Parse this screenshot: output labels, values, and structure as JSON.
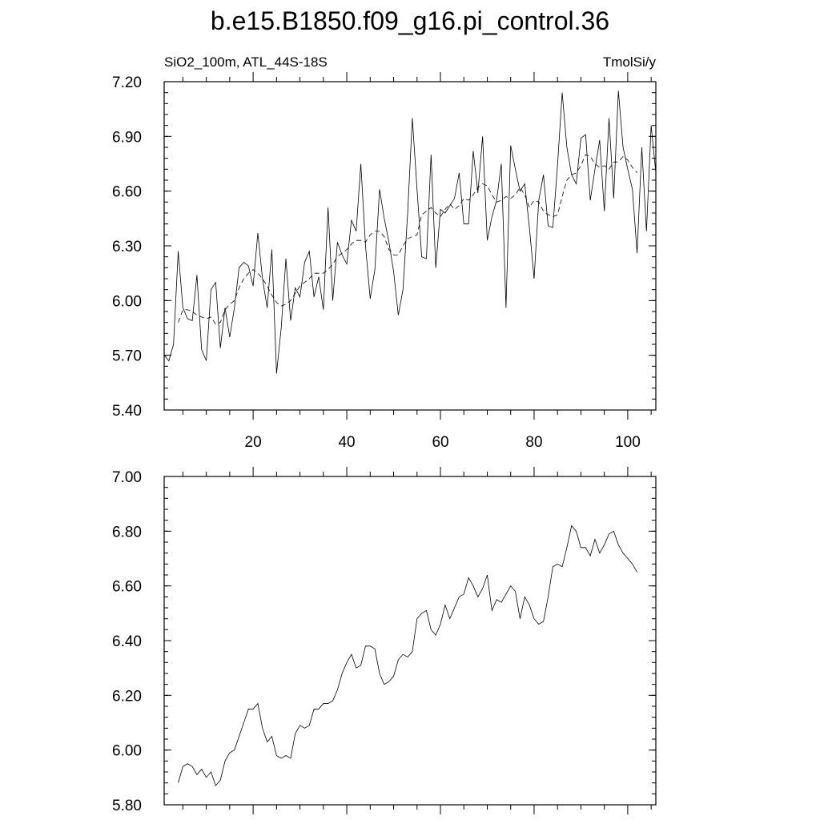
{
  "title": "b.e15.B1850.f09_g16.pi_control.36",
  "chart_data": [
    {
      "type": "line",
      "subtitle_left": "SiO2_100m, ATL_44S-18S",
      "subtitle_right": "TmolSi/y",
      "xlim": [
        1,
        106
      ],
      "ylim": [
        5.4,
        7.2
      ],
      "x_ticks": [
        20,
        40,
        60,
        80,
        100
      ],
      "x_tick_labels": [
        "20",
        "40",
        "60",
        "80",
        "100"
      ],
      "y_ticks": [
        5.4,
        5.7,
        6.0,
        6.3,
        6.6,
        6.9,
        7.2
      ],
      "y_tick_labels": [
        "5.40",
        "5.70",
        "6.00",
        "6.30",
        "6.60",
        "6.90",
        "7.20"
      ],
      "series": [
        {
          "style": "solid",
          "x": [
            1,
            2,
            3,
            4,
            5,
            6,
            7,
            8,
            9,
            10,
            11,
            12,
            13,
            14,
            15,
            16,
            17,
            18,
            19,
            20,
            21,
            22,
            23,
            24,
            25,
            26,
            27,
            28,
            29,
            30,
            31,
            32,
            33,
            34,
            35,
            36,
            37,
            38,
            39,
            40,
            41,
            42,
            43,
            44,
            45,
            46,
            47,
            48,
            49,
            50,
            51,
            52,
            53,
            54,
            55,
            56,
            57,
            58,
            59,
            60,
            61,
            62,
            63,
            64,
            65,
            66,
            67,
            68,
            69,
            70,
            71,
            72,
            73,
            74,
            75,
            76,
            77,
            78,
            79,
            80,
            81,
            82,
            83,
            84,
            85,
            86,
            87,
            88,
            89,
            90,
            91,
            92,
            93,
            94,
            95,
            96,
            97,
            98,
            99,
            100,
            101,
            102,
            103,
            104,
            105,
            106
          ],
          "values": [
            5.7,
            5.67,
            5.76,
            6.27,
            5.96,
            5.9,
            5.89,
            6.14,
            5.73,
            5.67,
            6.06,
            6.1,
            5.74,
            5.96,
            5.8,
            5.96,
            6.18,
            6.21,
            6.19,
            6.08,
            6.37,
            6.12,
            5.96,
            6.28,
            5.6,
            5.85,
            6.23,
            5.89,
            6.07,
            6.02,
            6.21,
            6.27,
            6.02,
            6.13,
            5.95,
            6.51,
            6.0,
            6.32,
            6.25,
            6.2,
            6.44,
            6.38,
            6.75,
            6.3,
            6.01,
            6.17,
            6.61,
            6.45,
            6.32,
            6.16,
            5.92,
            6.06,
            6.48,
            7.0,
            6.61,
            6.24,
            6.23,
            6.8,
            6.18,
            6.5,
            6.48,
            6.52,
            6.56,
            6.7,
            6.42,
            6.42,
            6.82,
            6.59,
            6.9,
            6.33,
            6.46,
            6.55,
            6.75,
            5.96,
            6.85,
            6.72,
            6.6,
            6.64,
            6.4,
            6.12,
            6.55,
            6.69,
            6.41,
            6.4,
            6.74,
            7.14,
            6.84,
            6.69,
            6.64,
            6.89,
            6.91,
            6.55,
            6.72,
            6.88,
            6.49,
            7.0,
            6.56,
            7.15,
            6.84,
            6.72,
            6.61,
            6.26,
            6.84,
            6.38,
            6.96,
            6.7
          ]
        },
        {
          "style": "dashed",
          "x": [
            4,
            5,
            6,
            7,
            8,
            9,
            10,
            11,
            12,
            13,
            14,
            15,
            16,
            17,
            18,
            19,
            20,
            21,
            22,
            23,
            24,
            25,
            26,
            27,
            28,
            29,
            30,
            31,
            32,
            33,
            34,
            35,
            36,
            37,
            38,
            39,
            40,
            41,
            42,
            43,
            44,
            45,
            46,
            47,
            48,
            49,
            50,
            51,
            52,
            53,
            54,
            55,
            56,
            57,
            58,
            59,
            60,
            61,
            62,
            63,
            64,
            65,
            66,
            67,
            68,
            69,
            70,
            71,
            72,
            73,
            74,
            75,
            76,
            77,
            78,
            79,
            80,
            81,
            82,
            83,
            84,
            85,
            86,
            87,
            88,
            89,
            90,
            91,
            92,
            93,
            94,
            95,
            96,
            97,
            98,
            99,
            100,
            101,
            102
          ],
          "values": [
            5.88,
            5.95,
            5.95,
            5.94,
            5.92,
            5.91,
            5.9,
            5.91,
            5.87,
            5.88,
            5.95,
            5.98,
            6.0,
            6.07,
            6.12,
            6.15,
            6.17,
            6.15,
            6.12,
            6.08,
            6.03,
            5.99,
            5.97,
            5.98,
            6.0,
            6.04,
            6.08,
            6.1,
            6.12,
            6.15,
            6.15,
            6.15,
            6.17,
            6.2,
            6.24,
            6.26,
            6.28,
            6.31,
            6.33,
            6.33,
            6.32,
            6.36,
            6.38,
            6.38,
            6.35,
            6.28,
            6.25,
            6.25,
            6.3,
            6.34,
            6.35,
            6.36,
            6.47,
            6.49,
            6.51,
            6.48,
            6.46,
            6.5,
            6.53,
            6.5,
            6.52,
            6.56,
            6.55,
            6.58,
            6.62,
            6.64,
            6.63,
            6.58,
            6.54,
            6.55,
            6.57,
            6.56,
            6.58,
            6.62,
            6.58,
            6.51,
            6.55,
            6.54,
            6.49,
            6.47,
            6.46,
            6.47,
            6.57,
            6.66,
            6.69,
            6.7,
            6.74,
            6.8,
            6.79,
            6.75,
            6.73,
            6.74,
            6.72,
            6.76,
            6.76,
            6.79,
            6.77,
            6.73,
            6.7
          ]
        }
      ]
    },
    {
      "type": "line",
      "xlim": [
        1,
        106
      ],
      "ylim": [
        5.8,
        7.0
      ],
      "x_ticks": [
        20,
        40,
        60,
        80,
        100
      ],
      "y_ticks": [
        5.8,
        6.0,
        6.2,
        6.4,
        6.6,
        6.8,
        7.0
      ],
      "y_tick_labels": [
        "5.80",
        "6.00",
        "6.20",
        "6.40",
        "6.60",
        "6.80",
        "7.00"
      ],
      "series": [
        {
          "style": "solid",
          "x": [
            4,
            5,
            6,
            7,
            8,
            9,
            10,
            11,
            12,
            13,
            14,
            15,
            16,
            17,
            18,
            19,
            20,
            21,
            22,
            23,
            24,
            25,
            26,
            27,
            28,
            29,
            30,
            31,
            32,
            33,
            34,
            35,
            36,
            37,
            38,
            39,
            40,
            41,
            42,
            43,
            44,
            45,
            46,
            47,
            48,
            49,
            50,
            51,
            52,
            53,
            54,
            55,
            56,
            57,
            58,
            59,
            60,
            61,
            62,
            63,
            64,
            65,
            66,
            67,
            68,
            69,
            70,
            71,
            72,
            73,
            74,
            75,
            76,
            77,
            78,
            79,
            80,
            81,
            82,
            83,
            84,
            85,
            86,
            87,
            88,
            89,
            90,
            91,
            92,
            93,
            94,
            95,
            96,
            97,
            98,
            99,
            100,
            101,
            102
          ],
          "values": [
            5.88,
            5.94,
            5.95,
            5.94,
            5.91,
            5.93,
            5.9,
            5.92,
            5.87,
            5.89,
            5.96,
            5.99,
            6.0,
            6.05,
            6.1,
            6.15,
            6.15,
            6.17,
            6.08,
            6.03,
            6.05,
            5.98,
            5.97,
            5.98,
            5.97,
            6.06,
            6.09,
            6.08,
            6.09,
            6.15,
            6.15,
            6.17,
            6.17,
            6.18,
            6.22,
            6.28,
            6.32,
            6.35,
            6.3,
            6.31,
            6.38,
            6.38,
            6.37,
            6.28,
            6.24,
            6.25,
            6.27,
            6.33,
            6.35,
            6.34,
            6.36,
            6.48,
            6.5,
            6.51,
            6.44,
            6.42,
            6.46,
            6.53,
            6.48,
            6.52,
            6.56,
            6.57,
            6.63,
            6.6,
            6.56,
            6.59,
            6.64,
            6.51,
            6.55,
            6.54,
            6.57,
            6.6,
            6.58,
            6.48,
            6.56,
            6.53,
            6.48,
            6.46,
            6.47,
            6.56,
            6.67,
            6.68,
            6.67,
            6.74,
            6.82,
            6.8,
            6.74,
            6.74,
            6.71,
            6.77,
            6.72,
            6.75,
            6.79,
            6.8,
            6.75,
            6.72,
            6.7,
            6.68,
            6.65
          ]
        }
      ]
    }
  ]
}
